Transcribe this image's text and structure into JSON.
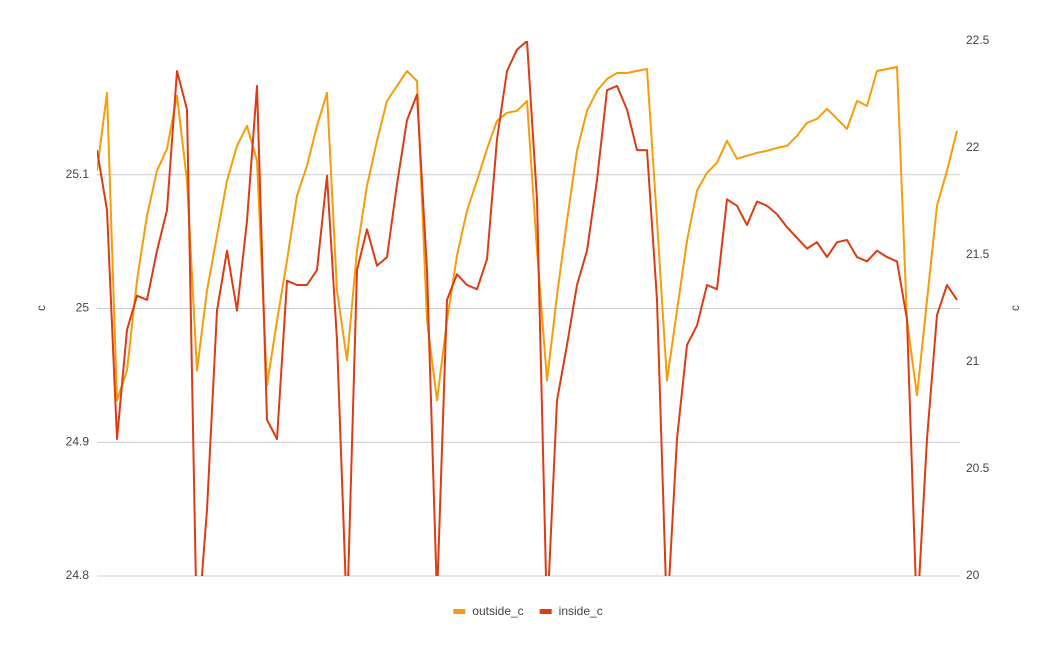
{
  "chart_data": {
    "type": "line",
    "ylabel": "c",
    "y2label": "c",
    "ylim": [
      24.8,
      25.2
    ],
    "yticks": [
      24.8,
      24.9,
      25,
      25.1
    ],
    "y2lim": [
      20,
      22.5
    ],
    "y2ticks": [
      20,
      20.5,
      21,
      21.5,
      22,
      22.5
    ],
    "grid": true,
    "legend": "bottom",
    "series": [
      {
        "name": "outside_c",
        "color": "#f59d0a",
        "axis": "y",
        "values": [
          25.103,
          25.1612,
          24.9313,
          24.9537,
          25.0209,
          25.0694,
          25.103,
          25.1194,
          25.159,
          25.0955,
          24.9537,
          25.0134,
          25.0545,
          25.0955,
          25.1216,
          25.1366,
          25.1104,
          24.9425,
          24.991,
          25.0358,
          25.0843,
          25.1067,
          25.1366,
          25.1612,
          25.0134,
          24.9612,
          25.0433,
          25.0918,
          25.1254,
          25.1552,
          25.1664,
          25.1776,
          25.1701,
          24.991,
          24.9313,
          24.991,
          25.0396,
          25.0731,
          25.0955,
          25.1194,
          25.1403,
          25.1463,
          25.1478,
          25.1552,
          25.0433,
          24.9463,
          25.0097,
          25.0657,
          25.1179,
          25.1478,
          25.1627,
          25.1716,
          25.1761,
          25.1761,
          25.1776,
          25.1791,
          25.0657,
          24.9463,
          24.9985,
          25.0507,
          25.0881,
          25.1015,
          25.109,
          25.1254,
          25.1119,
          25.1142,
          25.1164,
          25.1179,
          25.1201,
          25.1216,
          25.1291,
          25.1388,
          25.1418,
          25.1493,
          25.1418,
          25.1343,
          25.1552,
          25.1515,
          25.1776,
          25.1791,
          25.1806,
          24.991,
          24.9351,
          25.006,
          25.0769,
          25.103,
          25.1328
        ]
      },
      {
        "name": "inside_c",
        "color": "#dc3c14",
        "axis": "y2",
        "values": [
          21.99,
          21.71,
          20.64,
          21.15,
          21.31,
          21.29,
          21.52,
          21.71,
          22.36,
          22.18,
          19.7,
          20.31,
          21.24,
          21.52,
          21.24,
          21.66,
          22.29,
          20.73,
          20.64,
          21.38,
          21.36,
          21.36,
          21.43,
          21.87,
          21.1,
          19.8,
          21.43,
          21.62,
          21.45,
          21.49,
          21.83,
          22.13,
          22.25,
          21.43,
          19.9,
          21.29,
          21.41,
          21.36,
          21.34,
          21.48,
          22.04,
          22.36,
          22.46,
          22.5,
          21.76,
          19.8,
          20.82,
          21.08,
          21.36,
          21.52,
          21.85,
          22.27,
          22.29,
          22.18,
          21.99,
          21.99,
          21.29,
          19.8,
          20.64,
          21.08,
          21.17,
          21.36,
          21.34,
          21.76,
          21.73,
          21.64,
          21.75,
          21.73,
          21.69,
          21.63,
          21.58,
          21.53,
          21.56,
          21.49,
          21.56,
          21.57,
          21.49,
          21.47,
          21.52,
          21.49,
          21.47,
          21.2,
          19.8,
          20.64,
          21.22,
          21.36,
          21.29
        ]
      }
    ]
  }
}
